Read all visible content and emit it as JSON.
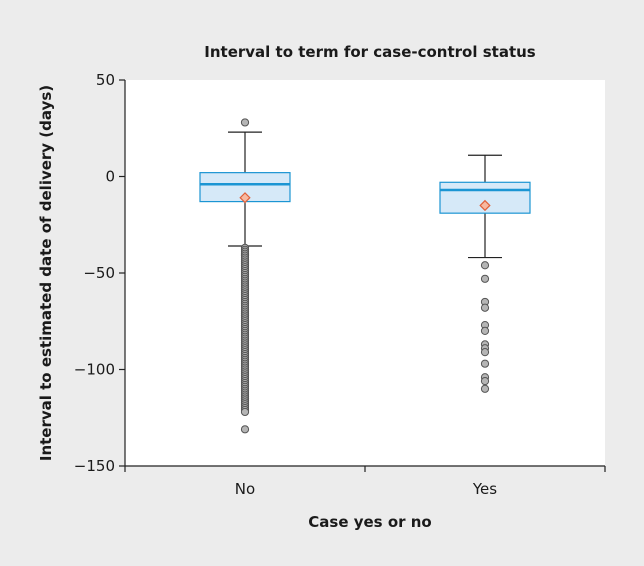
{
  "chart_data": {
    "type": "boxplot",
    "title": "Interval to term for case-control status",
    "xlabel": "Case yes or no",
    "ylabel": "Interval to estimated date of delivery (days)",
    "categories": [
      "No",
      "Yes"
    ],
    "ylim": [
      -150,
      50
    ],
    "yticks": [
      50,
      0,
      -50,
      -100,
      -150
    ],
    "ytick_labels": [
      "50",
      "0",
      "−50",
      "−100",
      "−150"
    ],
    "grid": false,
    "legend": "none",
    "boxes": [
      {
        "category": "No",
        "whisker_low": -36,
        "q1": -13,
        "median": -4,
        "q3": 2,
        "whisker_high": 23,
        "mean": -11,
        "outliers": [
          28,
          -37,
          -38,
          -39,
          -40,
          -41,
          -42,
          -43,
          -44,
          -45,
          -46,
          -47,
          -48,
          -49,
          -50,
          -51,
          -52,
          -53,
          -54,
          -55,
          -56,
          -57,
          -58,
          -59,
          -60,
          -61,
          -62,
          -63,
          -64,
          -65,
          -66,
          -67,
          -68,
          -69,
          -70,
          -71,
          -72,
          -73,
          -74,
          -75,
          -76,
          -77,
          -78,
          -79,
          -80,
          -81,
          -82,
          -83,
          -84,
          -85,
          -86,
          -87,
          -88,
          -89,
          -90,
          -91,
          -92,
          -93,
          -94,
          -95,
          -96,
          -97,
          -98,
          -99,
          -100,
          -101,
          -102,
          -103,
          -104,
          -105,
          -106,
          -107,
          -108,
          -109,
          -110,
          -111,
          -112,
          -113,
          -114,
          -115,
          -116,
          -117,
          -118,
          -119,
          -120,
          -121,
          -122,
          -131
        ]
      },
      {
        "category": "Yes",
        "whisker_low": -42,
        "q1": -19,
        "median": -7,
        "q3": -3,
        "whisker_high": 11,
        "mean": -15,
        "outliers": [
          -46,
          -53,
          -65,
          -68,
          -77,
          -80,
          -87,
          -89,
          -91,
          -97,
          -104,
          -106,
          -110
        ]
      }
    ],
    "colors": {
      "box_fill": "#d6e9f8",
      "box_edge": "#1b95d3",
      "median": "#1b95d3",
      "whisker": "#222222",
      "outlier_fill": "#b5b5b5",
      "outlier_edge": "#555555",
      "mean_fill": "#f7b9a1",
      "mean_edge": "#e0603a",
      "plot_bg": "#ffffff",
      "page_bg": "#ececec"
    }
  }
}
